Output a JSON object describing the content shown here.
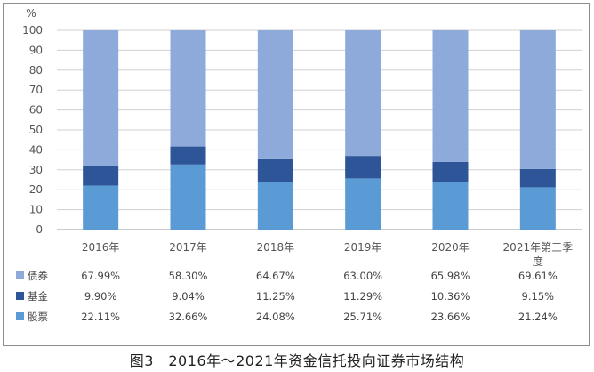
{
  "chart_data": {
    "type": "bar",
    "stacked": true,
    "percent_stacked": true,
    "y_unit": "%",
    "ylim": [
      0,
      100
    ],
    "yticks": [
      0,
      10,
      20,
      30,
      40,
      50,
      60,
      70,
      80,
      90,
      100
    ],
    "grid": true,
    "legend": "table-below",
    "categories": [
      "2016年",
      "2017年",
      "2018年",
      "2019年",
      "2020年",
      "2021年第三季度"
    ],
    "category_lines": [
      [
        "2016年"
      ],
      [
        "2017年"
      ],
      [
        "2018年"
      ],
      [
        "2019年"
      ],
      [
        "2020年"
      ],
      [
        "2021年第三季",
        "度"
      ]
    ],
    "series": [
      {
        "name": "股票",
        "color": "#5b9bd5",
        "values": [
          22.11,
          32.66,
          24.08,
          25.71,
          23.66,
          21.24
        ],
        "labels": [
          "22.11%",
          "32.66%",
          "24.08%",
          "25.71%",
          "23.66%",
          "21.24%"
        ]
      },
      {
        "name": "基金",
        "color": "#2e5597",
        "values": [
          9.9,
          9.04,
          11.25,
          11.29,
          10.36,
          9.15
        ],
        "labels": [
          "9.90%",
          "9.04%",
          "11.25%",
          "11.29%",
          "10.36%",
          "9.15%"
        ]
      },
      {
        "name": "债券",
        "color": "#8eaadb",
        "values": [
          67.99,
          58.3,
          64.67,
          63.0,
          65.98,
          69.61
        ],
        "labels": [
          "67.99%",
          "58.30%",
          "64.67%",
          "63.00%",
          "65.98%",
          "69.61%"
        ]
      }
    ],
    "table_row_order": [
      "债券",
      "基金",
      "股票"
    ]
  },
  "caption": "图3　2016年～2021年资金信托投向证券市场结构"
}
